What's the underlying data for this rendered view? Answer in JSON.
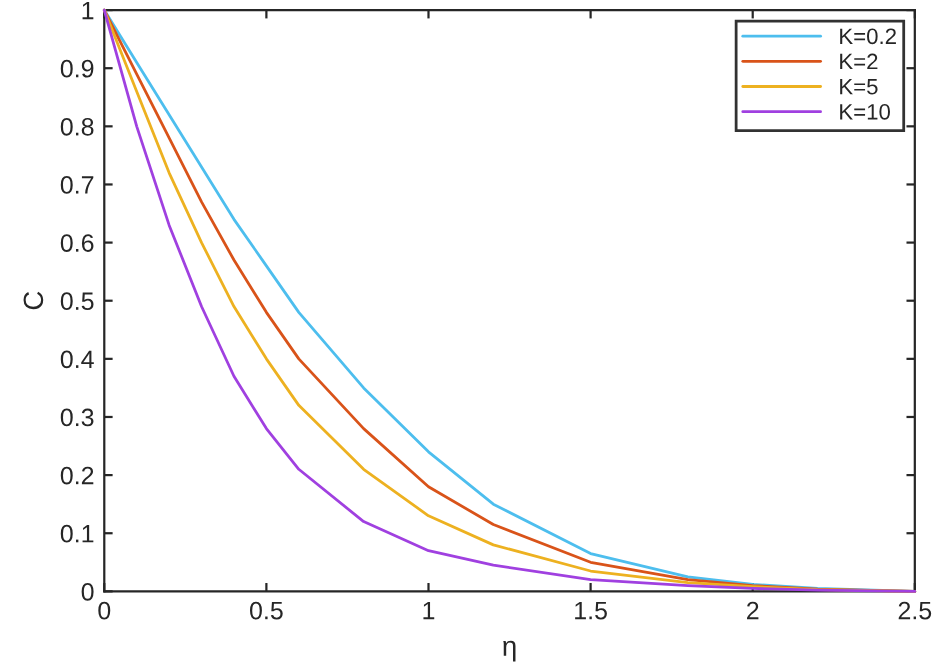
{
  "chart_data": {
    "type": "line",
    "xlabel": "η",
    "ylabel": "C",
    "x": [
      0,
      0.1,
      0.2,
      0.3,
      0.4,
      0.5,
      0.6,
      0.8,
      1.0,
      1.2,
      1.5,
      1.8,
      2.0,
      2.2,
      2.5
    ],
    "series": [
      {
        "name": "K=0.2",
        "color": "#4dbeee",
        "values": [
          1,
          0.91,
          0.82,
          0.73,
          0.64,
          0.56,
          0.48,
          0.35,
          0.24,
          0.15,
          0.065,
          0.025,
          0.012,
          0.005,
          0
        ]
      },
      {
        "name": "K=2",
        "color": "#d95319",
        "values": [
          1,
          0.89,
          0.78,
          0.67,
          0.57,
          0.48,
          0.4,
          0.28,
          0.18,
          0.115,
          0.05,
          0.02,
          0.01,
          0.004,
          0
        ]
      },
      {
        "name": "K=5",
        "color": "#edb120",
        "values": [
          1,
          0.86,
          0.72,
          0.6,
          0.49,
          0.4,
          0.32,
          0.21,
          0.13,
          0.08,
          0.035,
          0.015,
          0.008,
          0.003,
          0
        ]
      },
      {
        "name": "K=10",
        "color": "#a040e0",
        "values": [
          1,
          0.8,
          0.63,
          0.49,
          0.37,
          0.28,
          0.21,
          0.12,
          0.07,
          0.045,
          0.02,
          0.01,
          0.005,
          0.002,
          0
        ]
      }
    ],
    "xlim": [
      0,
      2.5
    ],
    "xticks": [
      0,
      0.5,
      1,
      1.5,
      2,
      2.5
    ],
    "ylim": [
      0,
      1
    ],
    "yticks": [
      0,
      0.1,
      0.2,
      0.3,
      0.4,
      0.5,
      0.6,
      0.7,
      0.8,
      0.9,
      1
    ],
    "grid": false,
    "legend": "top right",
    "marker": "none",
    "line_style": "solid"
  }
}
